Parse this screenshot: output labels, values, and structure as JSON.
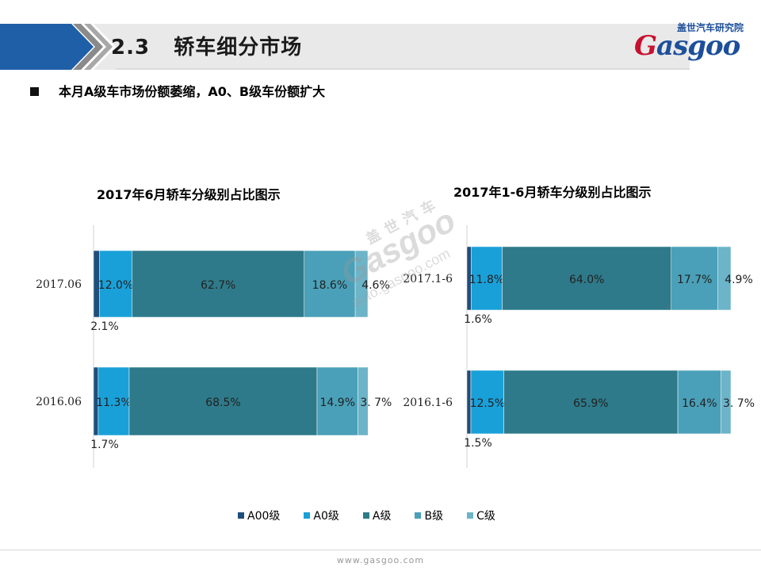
{
  "header": {
    "section_number": "2.3",
    "section_title": "轿车细分市场"
  },
  "logo": {
    "cn": "盖世汽车研究院",
    "word_main": "asgoo",
    "word_g": "G"
  },
  "bullet": {
    "text": "本月A级车市场份额萎缩，A0、B级车份额扩大"
  },
  "watermark": {
    "cn": "盖世汽车",
    "word": "Gasgoo",
    "url": "auto.gasgoo.com"
  },
  "footer": {
    "url": "www.gasgoo.com"
  },
  "colors": {
    "A00级": "#1f4e79",
    "A0级": "#1aa0d8",
    "A级": "#2e7a8a",
    "B级": "#4aa0b8",
    "C级": "#6cb4c8"
  },
  "legend": [
    "A00级",
    "A0级",
    "A级",
    "B级",
    "C级"
  ],
  "chart_data": [
    {
      "type": "bar",
      "stacked": true,
      "orientation": "horizontal",
      "percent": true,
      "title": "2017年6月轿车分级别占比图示",
      "categories": [
        "2017.06",
        "2016.06"
      ],
      "series": [
        {
          "name": "A00级",
          "values": [
            2.1,
            1.7
          ],
          "labels": [
            "2.1%",
            "1.7%"
          ]
        },
        {
          "name": "A0级",
          "values": [
            12.0,
            11.3
          ],
          "labels": [
            "12.0%",
            "11.3%"
          ]
        },
        {
          "name": "A级",
          "values": [
            62.7,
            68.5
          ],
          "labels": [
            "62.7%",
            "68.5%"
          ]
        },
        {
          "name": "B级",
          "values": [
            18.6,
            14.9
          ],
          "labels": [
            "18.6%",
            "14.9%"
          ]
        },
        {
          "name": "C级",
          "values": [
            4.6,
            3.7
          ],
          "labels": [
            "4.6%",
            "3. 7%"
          ]
        }
      ],
      "xlim": [
        0,
        100
      ]
    },
    {
      "type": "bar",
      "stacked": true,
      "orientation": "horizontal",
      "percent": true,
      "title": "2017年1-6月轿车分级别占比图示",
      "categories": [
        "2017.1-6",
        "2016.1-6"
      ],
      "series": [
        {
          "name": "A00级",
          "values": [
            1.6,
            1.5
          ],
          "labels": [
            "1.6%",
            "1.5%"
          ]
        },
        {
          "name": "A0级",
          "values": [
            11.8,
            12.5
          ],
          "labels": [
            "11.8%",
            "12.5%"
          ]
        },
        {
          "name": "A级",
          "values": [
            64.0,
            65.9
          ],
          "labels": [
            "64.0%",
            "65.9%"
          ]
        },
        {
          "name": "B级",
          "values": [
            17.7,
            16.4
          ],
          "labels": [
            "17.7%",
            "16.4%"
          ]
        },
        {
          "name": "C级",
          "values": [
            4.9,
            3.7
          ],
          "labels": [
            "4.9%",
            "3. 7%"
          ]
        }
      ],
      "xlim": [
        0,
        100
      ]
    }
  ]
}
